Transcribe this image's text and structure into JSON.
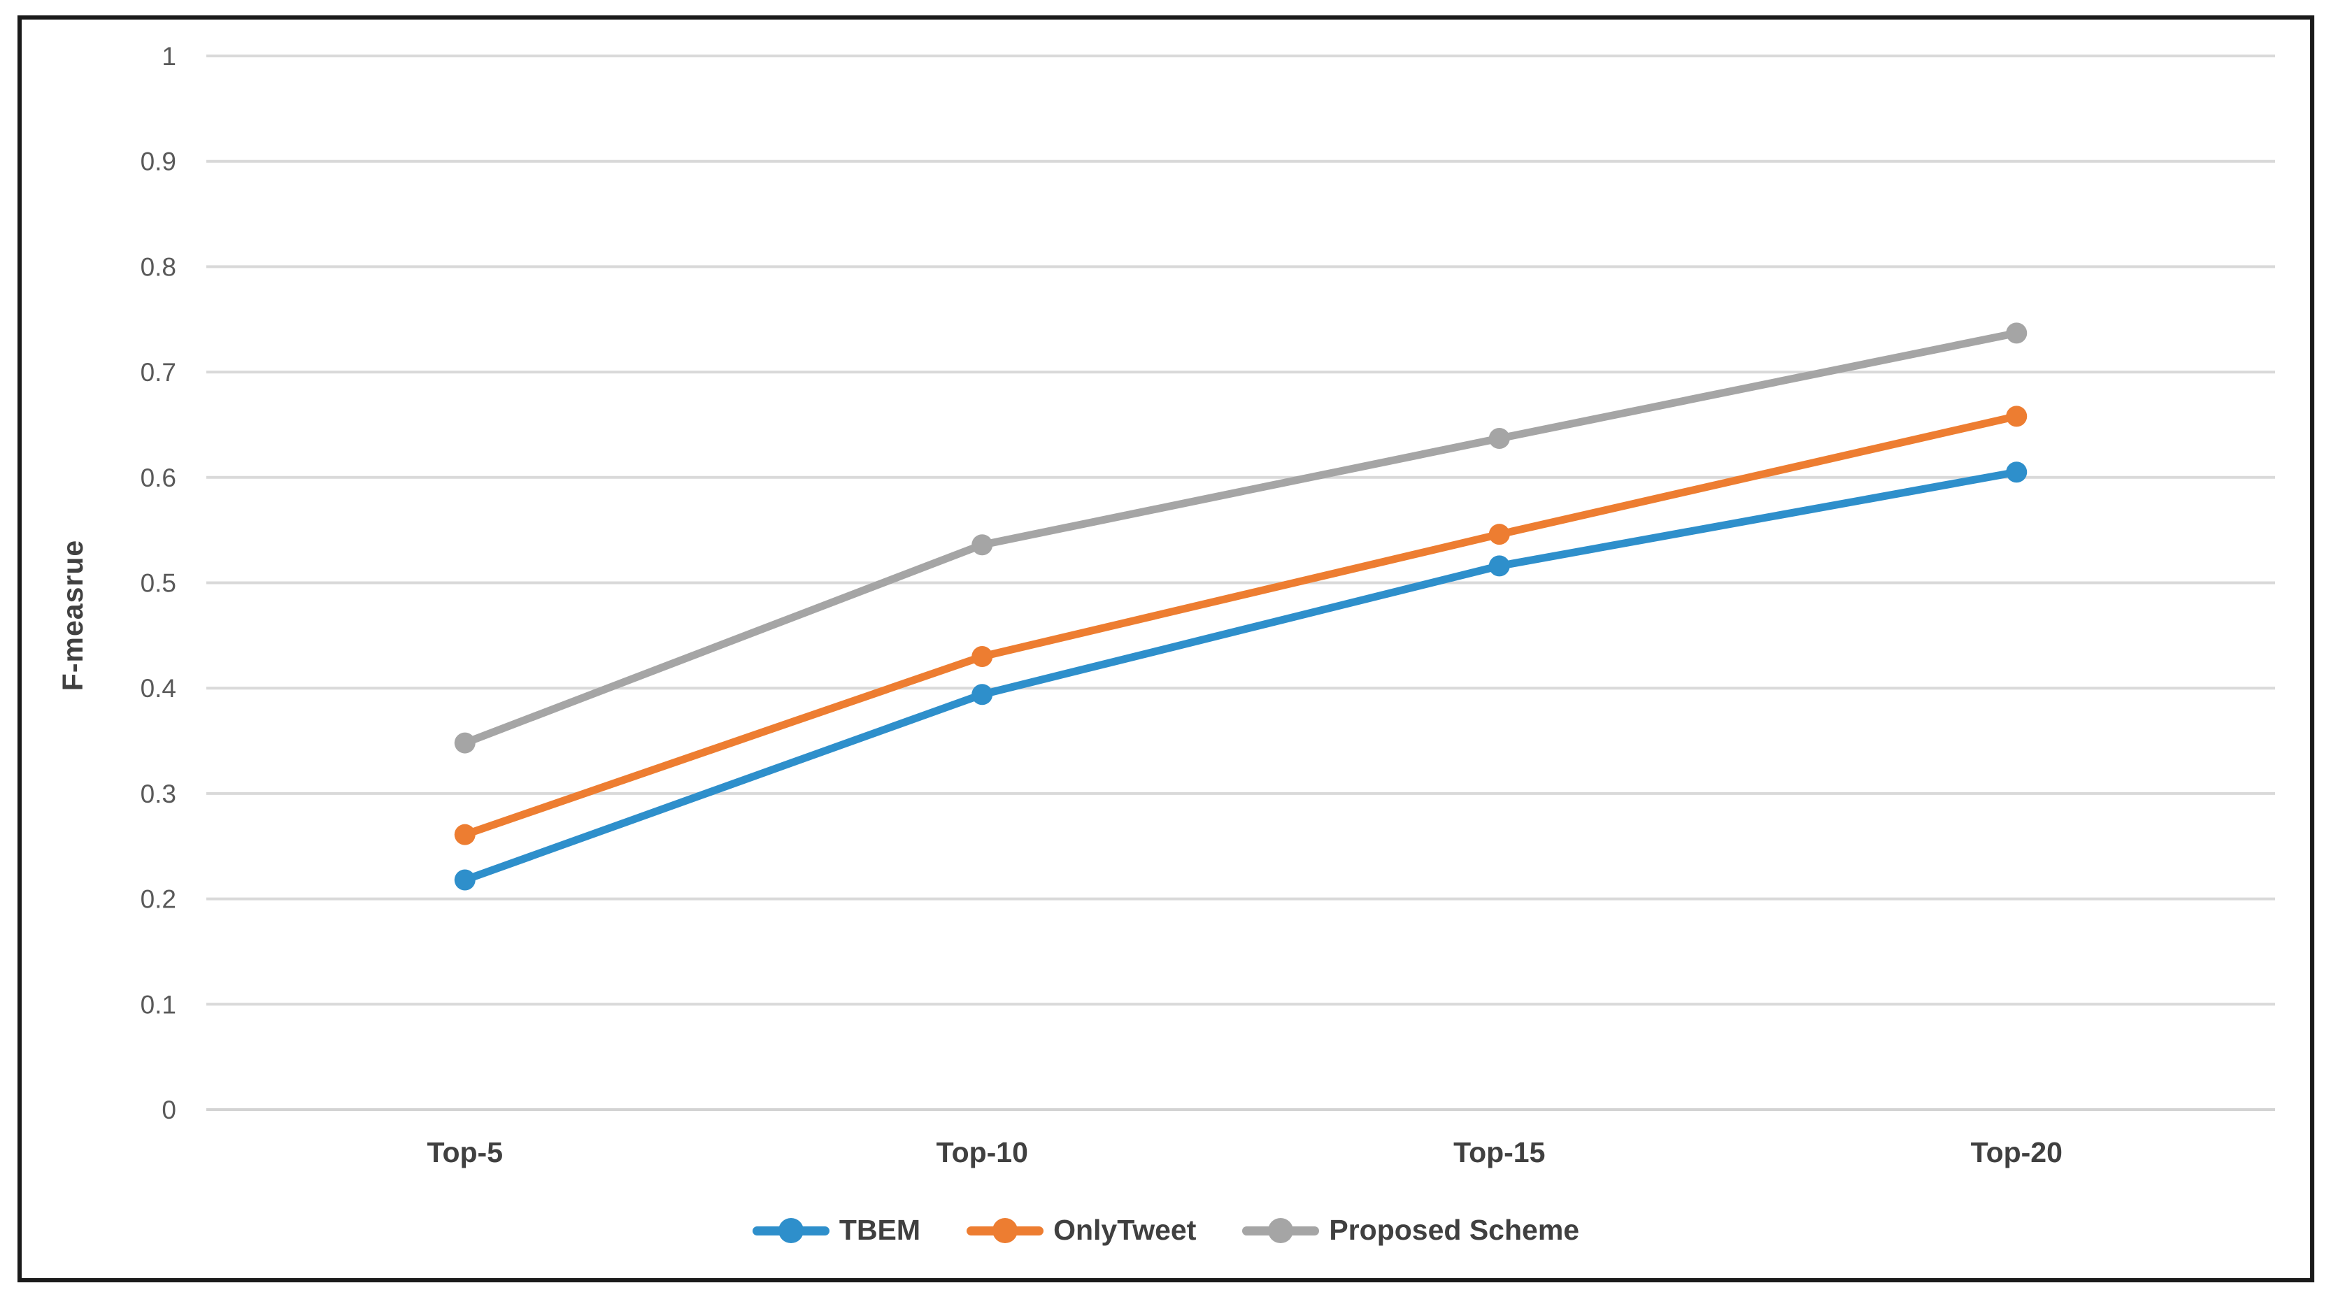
{
  "chart_data": {
    "type": "line",
    "title": "",
    "xlabel": "",
    "ylabel": "F-measrue",
    "categories": [
      "Top-5",
      "Top-10",
      "Top-15",
      "Top-20"
    ],
    "series": [
      {
        "name": "TBEM",
        "color": "#2E8FCB",
        "values": [
          0.218,
          0.394,
          0.516,
          0.605
        ]
      },
      {
        "name": "OnlyTweet",
        "color": "#ED7D31",
        "values": [
          0.261,
          0.43,
          0.546,
          0.658
        ]
      },
      {
        "name": "Proposed Scheme",
        "color": "#A5A5A5",
        "values": [
          0.348,
          0.536,
          0.637,
          0.737
        ]
      }
    ],
    "ylim": [
      0,
      1
    ],
    "ytick_step": 0.1,
    "yticks": [
      "0",
      "0.1",
      "0.2",
      "0.3",
      "0.4",
      "0.5",
      "0.6",
      "0.7",
      "0.8",
      "0.9",
      "1"
    ],
    "grid": "horizontal",
    "legend_position": "bottom-center",
    "marker": "circle",
    "colors": {
      "gridline": "#d9d9d9",
      "axis_line": "#d3d3d3",
      "tick_text": "#595959",
      "label_text": "#404040",
      "frame_border": "#1a1a1a",
      "background": "#ffffff"
    }
  }
}
